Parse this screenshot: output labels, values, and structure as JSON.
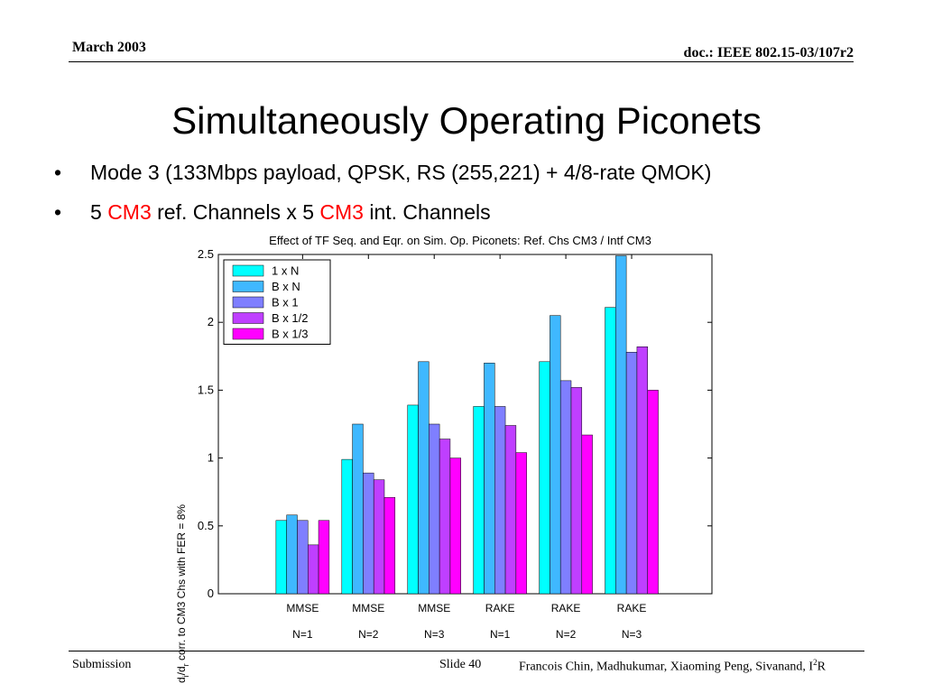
{
  "header": {
    "date": "March 2003",
    "doc": "doc.: IEEE 802.15-03/107r2"
  },
  "title": "Simultaneously Operating Piconets",
  "bullets": {
    "b1": "Mode 3 (133Mbps payload, QPSK, RS (255,221) + 4/8-rate QMOK)",
    "b2_pre": "5 ",
    "b2_red1": "CM3",
    "b2_mid": " ref. Channels x 5 ",
    "b2_red2": "CM3",
    "b2_post": " int. Channels"
  },
  "colors": {
    "accent_red": "#ff0000"
  },
  "chart_data": {
    "type": "bar",
    "title": "Effect of TF Seq. and Eqr. on Sim. Op. Piconets: Ref. Chs CM3 / Intf CM3",
    "ylabel": "d_i/d_r corr. to CM3 Chs with FER = 8%",
    "xlabel": "",
    "ylim": [
      0,
      2.5
    ],
    "yticks": [
      "0",
      "0.5",
      "1",
      "1.5",
      "2",
      "2.5"
    ],
    "ytick_values": [
      0,
      0.5,
      1,
      1.5,
      2,
      2.5
    ],
    "grid": false,
    "legend_position": "top-left",
    "categories": [
      "MMSE N=1",
      "MMSE N=2",
      "MMSE N=3",
      "RAKE N=1",
      "RAKE N=2",
      "RAKE N=3"
    ],
    "category_line1": [
      "MMSE",
      "MMSE",
      "MMSE",
      "RAKE",
      "RAKE",
      "RAKE"
    ],
    "category_line2": [
      "N=1",
      "N=2",
      "N=3",
      "N=1",
      "N=2",
      "N=3"
    ],
    "series": [
      {
        "name": "1 x N",
        "color": "#00ffff",
        "values": [
          0.54,
          0.99,
          1.39,
          1.38,
          1.71,
          2.11
        ]
      },
      {
        "name": "B x N",
        "color": "#3fb8ff",
        "values": [
          0.58,
          1.25,
          1.71,
          1.7,
          2.05,
          2.49
        ]
      },
      {
        "name": "B x 1",
        "color": "#7f7fff",
        "values": [
          0.54,
          0.89,
          1.25,
          1.38,
          1.57,
          1.78
        ]
      },
      {
        "name": "B x 1/2",
        "color": "#bf3fff",
        "values": [
          0.36,
          0.84,
          1.14,
          1.24,
          1.52,
          1.82
        ]
      },
      {
        "name": "B x 1/3",
        "color": "#ff00ff",
        "values": [
          0.54,
          0.71,
          1.0,
          1.04,
          1.17,
          1.5
        ]
      }
    ]
  },
  "footer": {
    "left": "Submission",
    "slide": "Slide 40",
    "authors": "Francois Chin, Madhukumar, Xiaoming Peng, Sivanand, I",
    "authors_sup": "2",
    "authors_end": "R"
  }
}
